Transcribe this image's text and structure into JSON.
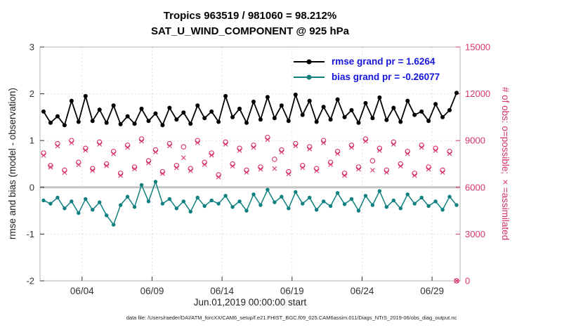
{
  "colors": {
    "rmse": "#000000",
    "bias": "#108080",
    "obs": "#d6336c",
    "legend_text": "#1515e0",
    "tick": "#333333",
    "box": "#b3b3b3",
    "grid": "#e0e0e0",
    "zero_line": "#c4c4c4"
  },
  "caption": "data file: /Users/raeder/DAI/ATM_forcXX/CAM6_setup/f.e21.FHIST_BGC.f09_025.CAM6assim.011/Diags_NTrS_2019-06/obs_diag_output.nc",
  "chart_data": {
    "type": "line",
    "title": "Tropics 963519 / 981060 = 98.212%",
    "subtitle": "SAT_U_WIND_COMPONENT @ 925 hPa",
    "xlabel": "Jun.01,2019 00:00:00 start",
    "ylabel_left": "rmse and bias (model - observation)",
    "ylabel_right": "# of obs: o=possible; ×=assimilated",
    "legend": [
      "rmse grand pr = 1.6264",
      "bias grand pr = -0.26077"
    ],
    "grid": true,
    "x_range": [
      0,
      30
    ],
    "left_range": [
      -2,
      3
    ],
    "right_range": [
      0,
      15000
    ],
    "left_ticks": [
      -2,
      -1,
      0,
      1,
      2,
      3
    ],
    "right_ticks": [
      0,
      3000,
      6000,
      9000,
      12000,
      15000
    ],
    "x_ticks": [
      {
        "day": 3,
        "label": "06/04"
      },
      {
        "day": 8,
        "label": "06/09"
      },
      {
        "day": 13,
        "label": "06/14"
      },
      {
        "day": 18,
        "label": "06/19"
      },
      {
        "day": 23,
        "label": "06/24"
      },
      {
        "day": 28,
        "label": "06/29"
      }
    ],
    "x_days": [
      0.25,
      0.75,
      1.25,
      1.75,
      2.25,
      2.75,
      3.25,
      3.75,
      4.25,
      4.75,
      5.25,
      5.75,
      6.25,
      6.75,
      7.25,
      7.75,
      8.25,
      8.75,
      9.25,
      9.75,
      10.25,
      10.75,
      11.25,
      11.75,
      12.25,
      12.75,
      13.25,
      13.75,
      14.25,
      14.75,
      15.25,
      15.75,
      16.25,
      16.75,
      17.25,
      17.75,
      18.25,
      18.75,
      19.25,
      19.75,
      20.25,
      20.75,
      21.25,
      21.75,
      22.25,
      22.75,
      23.25,
      23.75,
      24.25,
      24.75,
      25.25,
      25.75,
      26.25,
      26.75,
      27.25,
      27.75,
      28.25,
      28.75,
      29.25,
      29.75
    ],
    "series": [
      {
        "name": "rmse",
        "axis": "left",
        "marker": "dot",
        "values": [
          1.62,
          1.38,
          1.52,
          1.33,
          1.85,
          1.4,
          1.95,
          1.42,
          1.66,
          1.38,
          1.75,
          1.35,
          1.52,
          1.36,
          1.68,
          1.42,
          1.58,
          1.33,
          1.7,
          1.45,
          1.6,
          1.36,
          1.75,
          1.48,
          1.62,
          1.4,
          1.95,
          1.5,
          1.68,
          1.38,
          1.83,
          1.45,
          1.93,
          1.48,
          1.75,
          1.42,
          1.98,
          1.55,
          1.85,
          1.4,
          1.72,
          1.45,
          1.88,
          1.5,
          1.65,
          1.38,
          1.8,
          1.48,
          1.92,
          1.44,
          1.7,
          1.4,
          1.85,
          1.55,
          1.62,
          1.42,
          1.78,
          1.5,
          1.65,
          2.02
        ]
      },
      {
        "name": "bias",
        "axis": "left",
        "marker": "dot",
        "values": [
          -0.28,
          -0.35,
          -0.22,
          -0.45,
          -0.3,
          -0.55,
          -0.25,
          -0.48,
          -0.32,
          -0.6,
          -0.8,
          -0.38,
          -0.2,
          -0.42,
          0.05,
          -0.3,
          0.12,
          -0.35,
          -0.25,
          -0.45,
          -0.3,
          -0.52,
          -0.22,
          -0.4,
          -0.28,
          -0.35,
          -0.18,
          -0.42,
          -0.3,
          -0.5,
          -0.15,
          -0.38,
          -0.05,
          -0.32,
          -0.2,
          -0.45,
          -0.1,
          -0.35,
          -0.22,
          -0.48,
          -0.3,
          -0.4,
          -0.12,
          -0.36,
          -0.25,
          -0.5,
          -0.18,
          -0.38,
          -0.08,
          -0.42,
          -0.28,
          -0.45,
          -0.15,
          -0.35,
          -0.22,
          -0.4,
          -0.3,
          -0.48,
          -0.2,
          -0.38
        ]
      },
      {
        "name": "possible",
        "axis": "right",
        "marker": "o",
        "values": [
          8200,
          7400,
          8800,
          7100,
          9000,
          7600,
          8500,
          7200,
          8900,
          7500,
          8300,
          6900,
          8700,
          7300,
          9100,
          7700,
          8400,
          7000,
          8800,
          7400,
          8600,
          7200,
          9000,
          7600,
          8200,
          6800,
          8900,
          7500,
          8500,
          7100,
          8700,
          7300,
          9200,
          7800,
          8400,
          7000,
          8800,
          7400,
          8600,
          7200,
          9000,
          7600,
          8300,
          6900,
          8700,
          7300,
          9100,
          7700,
          8500,
          7100,
          8900,
          7500,
          8300,
          6900,
          8700,
          7300,
          8500,
          7100,
          8300,
          0
        ]
      },
      {
        "name": "assimilated",
        "axis": "right",
        "marker": "x",
        "values": [
          8050,
          7300,
          8650,
          6950,
          8850,
          7450,
          8380,
          7080,
          8760,
          7380,
          8150,
          6760,
          8560,
          7180,
          8960,
          7560,
          8260,
          6880,
          8660,
          7260,
          7900,
          7060,
          8860,
          7460,
          8060,
          6660,
          8760,
          7360,
          8360,
          6960,
          8560,
          7160,
          9060,
          7200,
          8260,
          6860,
          8660,
          7260,
          8460,
          7060,
          8860,
          7460,
          8160,
          6760,
          8560,
          7160,
          8960,
          7100,
          8360,
          6960,
          8760,
          7360,
          8160,
          6760,
          8560,
          7160,
          8360,
          6960,
          8160,
          0
        ]
      }
    ]
  }
}
